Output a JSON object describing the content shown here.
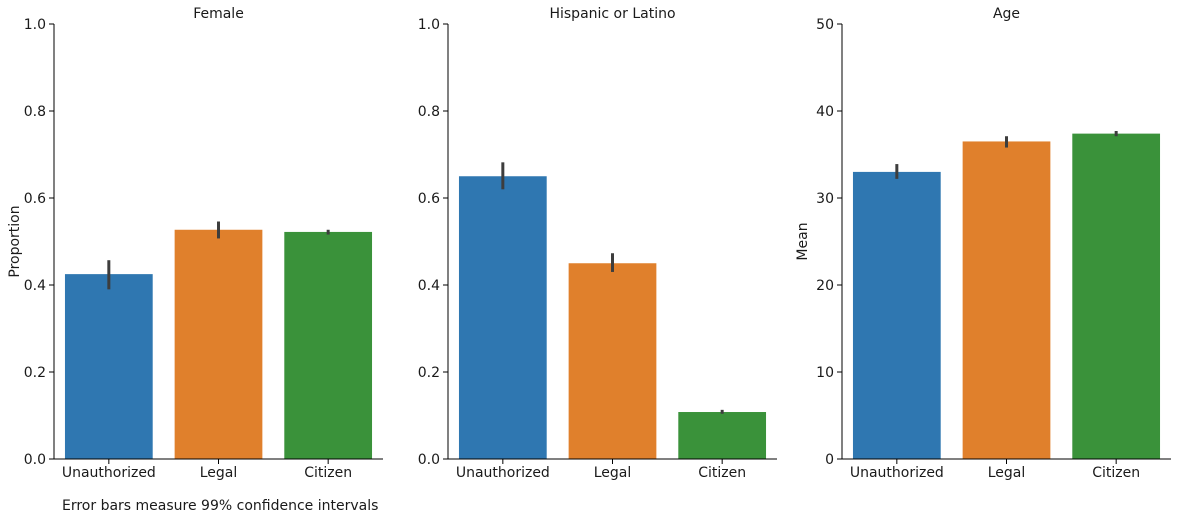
{
  "chart_data": [
    {
      "type": "bar",
      "title": "Female",
      "ylabel": "Proportion",
      "xlabel": "",
      "categories": [
        "Unauthorized",
        "Legal",
        "Citizen"
      ],
      "values": [
        0.425,
        0.527,
        0.522
      ],
      "ci": [
        [
          0.39,
          0.457
        ],
        [
          0.507,
          0.546
        ],
        [
          0.516,
          0.527
        ]
      ],
      "ylim": [
        0,
        1.0
      ],
      "yticks": [
        "0.0",
        "0.2",
        "0.4",
        "0.6",
        "0.8",
        "1.0"
      ],
      "colors": [
        "#2f77b1",
        "#e0802c",
        "#3a923a"
      ]
    },
    {
      "type": "bar",
      "title": "Hispanic or Latino",
      "ylabel": "",
      "xlabel": "",
      "categories": [
        "Unauthorized",
        "Legal",
        "Citizen"
      ],
      "values": [
        0.65,
        0.45,
        0.108
      ],
      "ci": [
        [
          0.62,
          0.682
        ],
        [
          0.43,
          0.473
        ],
        [
          0.104,
          0.113
        ]
      ],
      "ylim": [
        0,
        1.0
      ],
      "yticks": [
        "0.0",
        "0.2",
        "0.4",
        "0.6",
        "0.8",
        "1.0"
      ],
      "colors": [
        "#2f77b1",
        "#e0802c",
        "#3a923a"
      ]
    },
    {
      "type": "bar",
      "title": "Age",
      "ylabel": "Mean",
      "xlabel": "",
      "categories": [
        "Unauthorized",
        "Legal",
        "Citizen"
      ],
      "values": [
        33.0,
        36.5,
        37.4
      ],
      "ci": [
        [
          32.2,
          33.9
        ],
        [
          35.8,
          37.1
        ],
        [
          37.1,
          37.7
        ]
      ],
      "ylim": [
        0,
        50
      ],
      "yticks": [
        "0",
        "10",
        "20",
        "30",
        "40",
        "50"
      ],
      "colors": [
        "#2f77b1",
        "#e0802c",
        "#3a923a"
      ]
    }
  ],
  "footnote": "Error bars measure 99% confidence intervals"
}
